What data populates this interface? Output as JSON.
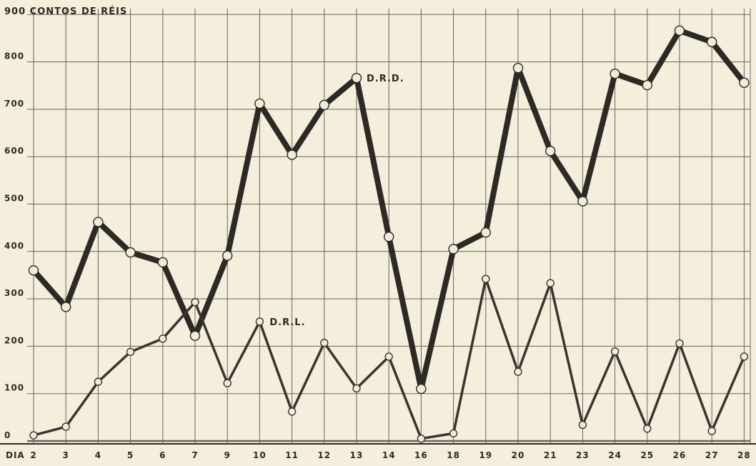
{
  "chart_data": {
    "type": "line",
    "title": "900 CONTOS DE RÉIS",
    "xlabel": "DIA",
    "ylabel": "",
    "ylim": [
      0,
      900
    ],
    "y_ticks": [
      "0",
      "100",
      "200",
      "300",
      "400",
      "500",
      "600",
      "700",
      "800"
    ],
    "categories": [
      "2",
      "3",
      "4",
      "5",
      "6",
      "7",
      "9",
      "10",
      "11",
      "12",
      "13",
      "14",
      "16",
      "18",
      "19",
      "20",
      "21",
      "23",
      "24",
      "25",
      "26",
      "27",
      "28"
    ],
    "grid": true,
    "legend": "none (series labels annotated on lines)",
    "series": [
      {
        "name": "D.R.D.",
        "color": "#2e2925",
        "values": [
          360,
          283,
          462,
          398,
          377,
          222,
          391,
          712,
          604,
          709,
          766,
          431,
          110,
          405,
          440,
          787,
          612,
          506,
          775,
          751,
          866,
          842,
          756
        ]
      },
      {
        "name": "D.R.L.",
        "color": "#3a3330",
        "values": [
          12,
          30,
          125,
          188,
          216,
          293,
          122,
          252,
          62,
          207,
          111,
          178,
          5,
          16,
          342,
          146,
          333,
          34,
          189,
          26,
          206,
          21,
          178
        ]
      }
    ]
  },
  "colors": {
    "paper": "#f3efdc",
    "ink": "#2e2925",
    "marker_fill": "#f1ecd8"
  }
}
